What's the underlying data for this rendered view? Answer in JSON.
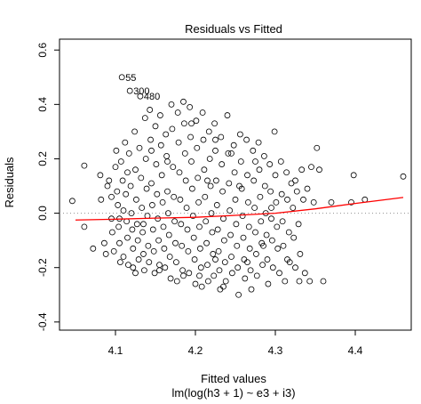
{
  "chart_data": {
    "type": "scatter",
    "title": "Residuals vs Fitted",
    "xlabel": "Fitted values",
    "subtitle": "lm(log(h3 + 1) ~ e3 + i3)",
    "ylabel": "Residuals",
    "xlim": [
      4.03,
      4.47
    ],
    "ylim": [
      -0.43,
      0.64
    ],
    "x_ticks": [
      4.1,
      4.2,
      4.3,
      4.4
    ],
    "x_tick_labels": [
      "4.1",
      "4.2",
      "4.3",
      "4.4"
    ],
    "y_ticks": [
      -0.4,
      -0.2,
      0.0,
      0.2,
      0.4,
      0.6
    ],
    "y_tick_labels": [
      "-0.4",
      "-0.2",
      "0.0",
      "0.2",
      "0.4",
      "0.6"
    ],
    "reference_line_y": 0,
    "point_color": "#000000",
    "smooth_color": "#ff0000",
    "reference_line_color": "#909090",
    "grid": false,
    "smooth_line": {
      "x": [
        4.05,
        4.1,
        4.15,
        4.2,
        4.25,
        4.3,
        4.35,
        4.4,
        4.46
      ],
      "y": [
        -0.025,
        -0.022,
        -0.018,
        -0.015,
        -0.008,
        0.0,
        0.016,
        0.036,
        0.058
      ]
    },
    "annotations": [
      {
        "label": "55",
        "x": 4.108,
        "y": 0.5
      },
      {
        "label": "300",
        "x": 4.118,
        "y": 0.45
      },
      {
        "label": "480",
        "x": 4.131,
        "y": 0.43
      }
    ],
    "points": [
      [
        4.046,
        0.045
      ],
      [
        4.061,
        0.175
      ],
      [
        4.072,
        -0.13
      ],
      [
        4.061,
        -0.05
      ],
      [
        4.081,
        0.14
      ],
      [
        4.082,
        0.05
      ],
      [
        4.086,
        -0.11
      ],
      [
        4.088,
        -0.15
      ],
      [
        4.09,
        0.1
      ],
      [
        4.092,
        0.12
      ],
      [
        4.095,
        0.06
      ],
      [
        4.095,
        -0.02
      ],
      [
        4.096,
        -0.07
      ],
      [
        4.098,
        -0.14
      ],
      [
        4.1,
        0.17
      ],
      [
        4.101,
        0.23
      ],
      [
        4.102,
        0.08
      ],
      [
        4.103,
        0.03
      ],
      [
        4.104,
        -0.05
      ],
      [
        4.105,
        -0.11
      ],
      [
        4.106,
        -0.18
      ],
      [
        4.107,
        0.19
      ],
      [
        4.108,
        0.5
      ],
      [
        4.109,
        0.12
      ],
      [
        4.11,
        0.01
      ],
      [
        4.11,
        -0.16
      ],
      [
        4.112,
        0.26
      ],
      [
        4.113,
        0.07
      ],
      [
        4.114,
        -0.03
      ],
      [
        4.115,
        -0.09
      ],
      [
        4.116,
        -0.19
      ],
      [
        4.117,
        0.22
      ],
      [
        4.118,
        0.45
      ],
      [
        4.119,
        0.1
      ],
      [
        4.12,
        0.0
      ],
      [
        4.121,
        -0.06
      ],
      [
        4.122,
        -0.13
      ],
      [
        4.122,
        -0.2
      ],
      [
        4.124,
        0.3
      ],
      [
        4.125,
        0.16
      ],
      [
        4.126,
        0.05
      ],
      [
        4.127,
        -0.04
      ],
      [
        4.128,
        -0.1
      ],
      [
        4.129,
        -0.17
      ],
      [
        4.13,
        0.24
      ],
      [
        4.131,
        0.43
      ],
      [
        4.132,
        0.13
      ],
      [
        4.133,
        0.02
      ],
      [
        4.134,
        -0.07
      ],
      [
        4.135,
        -0.15
      ],
      [
        4.136,
        -0.21
      ],
      [
        4.137,
        0.35
      ],
      [
        4.138,
        0.2
      ],
      [
        4.139,
        0.09
      ],
      [
        4.14,
        -0.01
      ],
      [
        4.141,
        -0.12
      ],
      [
        4.142,
        -0.18
      ],
      [
        4.143,
        0.38
      ],
      [
        4.144,
        0.27
      ],
      [
        4.145,
        0.11
      ],
      [
        4.146,
        0.03
      ],
      [
        4.147,
        -0.06
      ],
      [
        4.148,
        -0.14
      ],
      [
        4.149,
        -0.22
      ],
      [
        4.15,
        0.32
      ],
      [
        4.151,
        0.18
      ],
      [
        4.152,
        0.07
      ],
      [
        4.153,
        -0.02
      ],
      [
        4.154,
        -0.1
      ],
      [
        4.155,
        -0.19
      ],
      [
        4.156,
        0.36
      ],
      [
        4.157,
        0.25
      ],
      [
        4.158,
        0.14
      ],
      [
        4.159,
        0.04
      ],
      [
        4.16,
        -0.05
      ],
      [
        4.161,
        -0.13
      ],
      [
        4.162,
        -0.2
      ],
      [
        4.163,
        0.29
      ],
      [
        4.164,
        0.21
      ],
      [
        4.165,
        0.08
      ],
      [
        4.166,
        0.0
      ],
      [
        4.167,
        -0.08
      ],
      [
        4.168,
        -0.16
      ],
      [
        4.169,
        -0.24
      ],
      [
        4.17,
        0.4
      ],
      [
        4.171,
        0.31
      ],
      [
        4.172,
        0.17
      ],
      [
        4.173,
        0.06
      ],
      [
        4.174,
        -0.03
      ],
      [
        4.175,
        -0.11
      ],
      [
        4.176,
        -0.18
      ],
      [
        4.177,
        -0.25
      ],
      [
        4.178,
        0.37
      ],
      [
        4.179,
        0.26
      ],
      [
        4.18,
        0.15
      ],
      [
        4.181,
        0.05
      ],
      [
        4.182,
        -0.04
      ],
      [
        4.183,
        -0.12
      ],
      [
        4.184,
        -0.21
      ],
      [
        4.185,
        0.41
      ],
      [
        4.186,
        0.33
      ],
      [
        4.187,
        0.22
      ],
      [
        4.188,
        0.12
      ],
      [
        4.189,
        0.02
      ],
      [
        4.19,
        -0.06
      ],
      [
        4.191,
        -0.14
      ],
      [
        4.192,
        -0.22
      ],
      [
        4.193,
        0.39
      ],
      [
        4.194,
        0.28
      ],
      [
        4.195,
        0.19
      ],
      [
        4.196,
        0.09
      ],
      [
        4.197,
        -0.01
      ],
      [
        4.198,
        -0.09
      ],
      [
        4.199,
        -0.17
      ],
      [
        4.2,
        -0.26
      ],
      [
        4.201,
        0.34
      ],
      [
        4.202,
        0.24
      ],
      [
        4.203,
        0.13
      ],
      [
        4.204,
        0.04
      ],
      [
        4.205,
        -0.05
      ],
      [
        4.206,
        -0.13
      ],
      [
        4.207,
        -0.2
      ],
      [
        4.208,
        -0.27
      ],
      [
        4.209,
        0.37
      ],
      [
        4.21,
        0.27
      ],
      [
        4.211,
        0.16
      ],
      [
        4.212,
        0.06
      ],
      [
        4.213,
        -0.03
      ],
      [
        4.214,
        -0.11
      ],
      [
        4.215,
        -0.19
      ],
      [
        4.216,
        -0.25
      ],
      [
        4.217,
        0.3
      ],
      [
        4.218,
        0.2
      ],
      [
        4.219,
        0.1
      ],
      [
        4.22,
        0.0
      ],
      [
        4.221,
        -0.07
      ],
      [
        4.222,
        -0.15
      ],
      [
        4.223,
        -0.23
      ],
      [
        4.224,
        0.33
      ],
      [
        4.225,
        0.23
      ],
      [
        4.226,
        0.12
      ],
      [
        4.227,
        0.03
      ],
      [
        4.228,
        -0.06
      ],
      [
        4.229,
        -0.14
      ],
      [
        4.23,
        -0.21
      ],
      [
        4.231,
        -0.28
      ],
      [
        4.232,
        0.28
      ],
      [
        4.233,
        0.18
      ],
      [
        4.234,
        0.08
      ],
      [
        4.235,
        -0.02
      ],
      [
        4.236,
        -0.1
      ],
      [
        4.237,
        -0.18
      ],
      [
        4.238,
        -0.25
      ],
      [
        4.24,
        0.36
      ],
      [
        4.241,
        0.22
      ],
      [
        4.242,
        0.11
      ],
      [
        4.243,
        0.01
      ],
      [
        4.244,
        -0.08
      ],
      [
        4.245,
        -0.16
      ],
      [
        4.246,
        -0.22
      ],
      [
        4.248,
        0.25
      ],
      [
        4.249,
        0.15
      ],
      [
        4.25,
        0.05
      ],
      [
        4.251,
        -0.04
      ],
      [
        4.252,
        -0.12
      ],
      [
        4.253,
        -0.2
      ],
      [
        4.254,
        -0.3
      ],
      [
        4.256,
        0.29
      ],
      [
        4.257,
        0.19
      ],
      [
        4.258,
        0.09
      ],
      [
        4.259,
        -0.01
      ],
      [
        4.26,
        -0.09
      ],
      [
        4.261,
        -0.17
      ],
      [
        4.262,
        -0.24
      ],
      [
        4.264,
        0.27
      ],
      [
        4.265,
        0.14
      ],
      [
        4.266,
        0.04
      ],
      [
        4.267,
        -0.05
      ],
      [
        4.268,
        -0.13
      ],
      [
        4.269,
        -0.21
      ],
      [
        4.27,
        -0.28
      ],
      [
        4.272,
        0.23
      ],
      [
        4.273,
        0.12
      ],
      [
        4.274,
        0.02
      ],
      [
        4.275,
        -0.07
      ],
      [
        4.276,
        -0.15
      ],
      [
        4.277,
        -0.23
      ],
      [
        4.279,
        0.26
      ],
      [
        4.28,
        0.16
      ],
      [
        4.281,
        0.06
      ],
      [
        4.282,
        -0.03
      ],
      [
        4.283,
        -0.11
      ],
      [
        4.284,
        -0.19
      ],
      [
        4.286,
        0.21
      ],
      [
        4.287,
        0.1
      ],
      [
        4.288,
        0.0
      ],
      [
        4.289,
        -0.08
      ],
      [
        4.29,
        -0.17
      ],
      [
        4.291,
        -0.26
      ],
      [
        4.293,
        0.18
      ],
      [
        4.294,
        0.08
      ],
      [
        4.295,
        -0.02
      ],
      [
        4.296,
        -0.1
      ],
      [
        4.297,
        -0.2
      ],
      [
        4.299,
        0.3
      ],
      [
        4.3,
        0.14
      ],
      [
        4.301,
        0.04
      ],
      [
        4.302,
        -0.05
      ],
      [
        4.303,
        -0.13
      ],
      [
        4.305,
        -0.22
      ],
      [
        4.307,
        0.19
      ],
      [
        4.308,
        0.07
      ],
      [
        4.309,
        -0.03
      ],
      [
        4.31,
        -0.12
      ],
      [
        4.312,
        -0.25
      ],
      [
        4.314,
        0.15
      ],
      [
        4.315,
        0.05
      ],
      [
        4.317,
        -0.07
      ],
      [
        4.318,
        -0.18
      ],
      [
        4.32,
        0.11
      ],
      [
        4.322,
        0.02
      ],
      [
        4.323,
        -0.09
      ],
      [
        4.325,
        -0.2
      ],
      [
        4.327,
        0.08
      ],
      [
        4.329,
        -0.04
      ],
      [
        4.331,
        -0.15
      ],
      [
        4.333,
        0.16
      ],
      [
        4.335,
        0.05
      ],
      [
        4.337,
        -0.22
      ],
      [
        4.34,
        0.09
      ],
      [
        4.343,
        -0.25
      ],
      [
        4.345,
        0.17
      ],
      [
        4.348,
        0.04
      ],
      [
        4.352,
        0.24
      ],
      [
        4.355,
        0.16
      ],
      [
        4.36,
        -0.25
      ],
      [
        4.37,
        0.04
      ],
      [
        4.395,
        0.04
      ],
      [
        4.398,
        0.14
      ],
      [
        4.412,
        0.05
      ],
      [
        4.46,
        0.135
      ],
      [
        4.33,
        -0.25
      ],
      [
        4.285,
        -0.12
      ],
      [
        4.275,
        0.19
      ],
      [
        4.245,
        0.22
      ],
      [
        4.235,
        -0.27
      ],
      [
        4.225,
        0.27
      ],
      [
        4.205,
        -0.23
      ],
      [
        4.195,
        0.33
      ],
      [
        4.185,
        -0.23
      ],
      [
        4.165,
        0.19
      ],
      [
        4.155,
        -0.21
      ],
      [
        4.145,
        0.23
      ],
      [
        4.135,
        -0.04
      ],
      [
        4.125,
        -0.22
      ],
      [
        4.115,
        0.15
      ],
      [
        4.105,
        -0.02
      ],
      [
        4.215,
        0.12
      ],
      [
        4.225,
        -0.17
      ],
      [
        4.255,
        0.1
      ],
      [
        4.265,
        -0.18
      ],
      [
        4.295,
        0.02
      ],
      [
        4.315,
        -0.17
      ],
      [
        4.325,
        0.12
      ]
    ]
  }
}
